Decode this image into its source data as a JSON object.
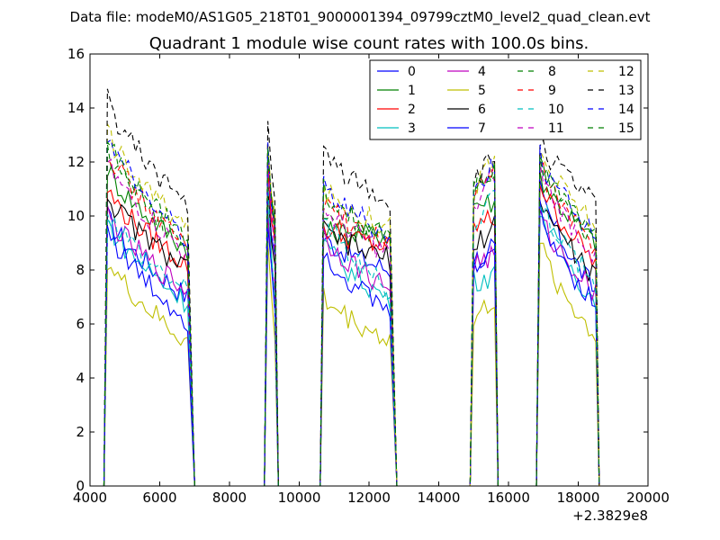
{
  "chart_data": {
    "type": "line",
    "suptitle": "Data file: modeM0/AS1G05_218T01_9000001394_09799cztM0_level2_quad_clean.evt",
    "title": "Quadrant 1 module wise count rates with 100.0s bins.",
    "xlabel": "",
    "ylabel": "",
    "x_offset_label": "+2.3829e8",
    "xlim": [
      4000,
      20000
    ],
    "ylim": [
      0,
      16
    ],
    "x_ticks": [
      "4000",
      "6000",
      "8000",
      "10000",
      "12000",
      "14000",
      "16000",
      "18000",
      "20000"
    ],
    "y_ticks": [
      "0",
      "2",
      "4",
      "6",
      "8",
      "10",
      "12",
      "14",
      "16"
    ],
    "grid": false,
    "legend_position": "upper-right",
    "segments": [
      {
        "x_start": 4500,
        "x_end": 6800,
        "drop_end": 7000,
        "step": 100
      },
      {
        "x_start": 9100,
        "x_end": 9300,
        "drop_end": 9400,
        "step": 100
      },
      {
        "x_start": 10700,
        "x_end": 12600,
        "drop_end": 12800,
        "step": 100
      },
      {
        "x_start": 15000,
        "x_end": 15600,
        "drop_end": 15700,
        "step": 100
      },
      {
        "x_start": 16900,
        "x_end": 18500,
        "drop_end": 18600,
        "step": 100
      }
    ],
    "series": [
      {
        "name": "0",
        "color": "#0000ff",
        "dash": "solid",
        "levels": [
          10.0,
          7.0,
          11.2,
          8.5,
          9.2,
          8.0,
          8.5,
          8.4,
          11.0,
          7.2
        ]
      },
      {
        "name": "1",
        "color": "#008000",
        "dash": "solid",
        "levels": [
          11.8,
          8.8,
          11.8,
          9.8,
          9.4,
          9.3,
          10.5,
          10.5,
          11.6,
          9.0
        ]
      },
      {
        "name": "2",
        "color": "#ff0000",
        "dash": "solid",
        "levels": [
          11.0,
          8.2,
          11.4,
          9.2,
          9.6,
          8.8,
          9.6,
          9.9,
          11.3,
          8.3
        ]
      },
      {
        "name": "3",
        "color": "#00bfbf",
        "dash": "solid",
        "levels": [
          9.8,
          6.8,
          10.6,
          7.0,
          9.0,
          6.9,
          7.6,
          7.8,
          10.4,
          6.8
        ]
      },
      {
        "name": "4",
        "color": "#bf00bf",
        "dash": "solid",
        "levels": [
          10.1,
          7.2,
          10.2,
          7.4,
          9.3,
          7.3,
          8.2,
          8.5,
          10.0,
          7.2
        ]
      },
      {
        "name": "5",
        "color": "#bfbf00",
        "dash": "solid",
        "levels": [
          8.4,
          5.3,
          9.0,
          5.6,
          7.0,
          5.4,
          6.0,
          6.9,
          9.0,
          5.5
        ]
      },
      {
        "name": "6",
        "color": "#000000",
        "dash": "solid",
        "levels": [
          10.8,
          8.0,
          10.8,
          8.4,
          9.4,
          8.4,
          8.6,
          9.7,
          10.8,
          7.7
        ]
      },
      {
        "name": "7",
        "color": "#0000ff",
        "dash": "solid",
        "levels": [
          9.6,
          6.1,
          10.0,
          6.7,
          8.8,
          6.4,
          8.0,
          9.0,
          10.2,
          6.7
        ]
      },
      {
        "name": "8",
        "color": "#008000",
        "dash": "dashed",
        "levels": [
          12.4,
          9.0,
          12.4,
          9.6,
          10.2,
          9.2,
          10.8,
          11.8,
          12.1,
          9.1
        ]
      },
      {
        "name": "9",
        "color": "#ff0000",
        "dash": "dashed",
        "levels": [
          12.6,
          8.8,
          12.0,
          9.5,
          10.4,
          9.0,
          10.6,
          11.7,
          12.0,
          8.8
        ]
      },
      {
        "name": "10",
        "color": "#00bfbf",
        "dash": "dashed",
        "levels": [
          10.3,
          7.2,
          11.0,
          7.3,
          10.0,
          7.2,
          9.2,
          11.0,
          10.8,
          7.5
        ]
      },
      {
        "name": "11",
        "color": "#bf00bf",
        "dash": "dashed",
        "levels": [
          12.0,
          8.6,
          11.6,
          9.0,
          10.3,
          8.6,
          10.0,
          11.6,
          11.7,
          8.6
        ]
      },
      {
        "name": "12",
        "color": "#bfbf00",
        "dash": "dashed",
        "levels": [
          13.2,
          9.5,
          13.0,
          9.8,
          11.0,
          9.6,
          11.0,
          12.0,
          12.4,
          9.7
        ]
      },
      {
        "name": "13",
        "color": "#000000",
        "dash": "dashed",
        "levels": [
          14.3,
          10.4,
          13.6,
          10.2,
          12.4,
          10.5,
          11.2,
          12.1,
          12.8,
          10.4
        ]
      },
      {
        "name": "14",
        "color": "#0000ff",
        "dash": "dashed",
        "levels": [
          13.0,
          9.2,
          12.6,
          9.4,
          11.2,
          9.3,
          10.8,
          12.0,
          12.2,
          9.3
        ]
      },
      {
        "name": "15",
        "color": "#008000",
        "dash": "dashed",
        "levels": [
          12.8,
          9.1,
          12.2,
          9.4,
          11.0,
          9.1,
          10.9,
          11.8,
          12.0,
          9.0
        ]
      }
    ]
  }
}
